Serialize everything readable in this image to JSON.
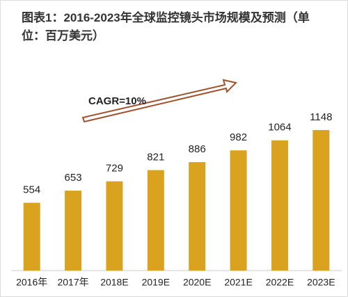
{
  "chart_data": {
    "type": "bar",
    "title": "图表1：2016-2023年全球监控镜头市场规模及预测（单位：百万美元）",
    "annotation": "CAGR=10%",
    "categories": [
      "2016年",
      "2017年",
      "2018E",
      "2019E",
      "2020E",
      "2021E",
      "2022E",
      "2023E"
    ],
    "values": [
      554,
      653,
      729,
      821,
      886,
      982,
      1064,
      1148
    ],
    "color": "#d9a21f"
  }
}
